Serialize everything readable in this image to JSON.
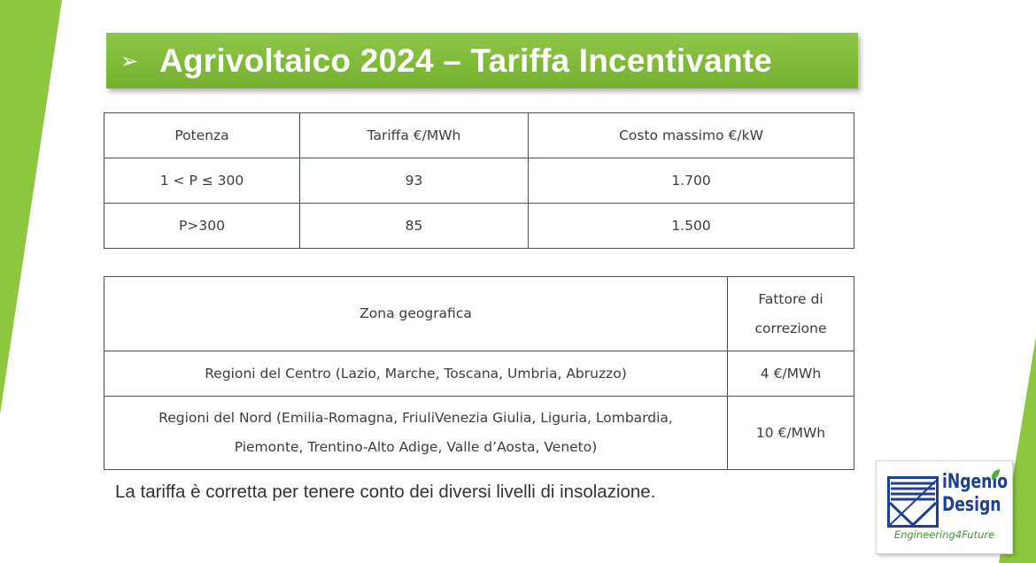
{
  "slide": {
    "title_bullet": "➢",
    "title": "Agrivoltaico 2024 – Tariffa Incentivante",
    "note": "La tariffa è corretta per tenere conto dei diversi livelli di insolazione."
  },
  "tariff_table": {
    "headers": [
      "Potenza",
      "Tariffa €/MWh",
      "Costo massimo €/kW"
    ],
    "rows": [
      [
        "1 < P ≤ 300",
        "93",
        "1.700"
      ],
      [
        "P>300",
        "85",
        "1.500"
      ]
    ]
  },
  "zone_table": {
    "headers": [
      "Zona geografica",
      "Fattore di correzione"
    ],
    "rows": [
      [
        "Regioni del Centro (Lazio, Marche, Toscana, Umbria, Abruzzo)",
        "4 €/MWh"
      ],
      [
        "Regioni del Nord (Emilia-Romagna, FriuliVenezia Giulia, Liguria, Lombardia, Piemonte, Trentino-Alto Adige, Valle d’Aosta, Veneto)",
        "10 €/MWh"
      ]
    ]
  },
  "logo": {
    "name_line1": "iNgenio",
    "name_line2": "Design",
    "tagline": "Engineering4Future"
  },
  "colors": {
    "accent_green": "#8dc63f",
    "title_text": "#ffffff",
    "logo_blue": "#1f3f8f",
    "logo_green": "#3d9a33"
  }
}
